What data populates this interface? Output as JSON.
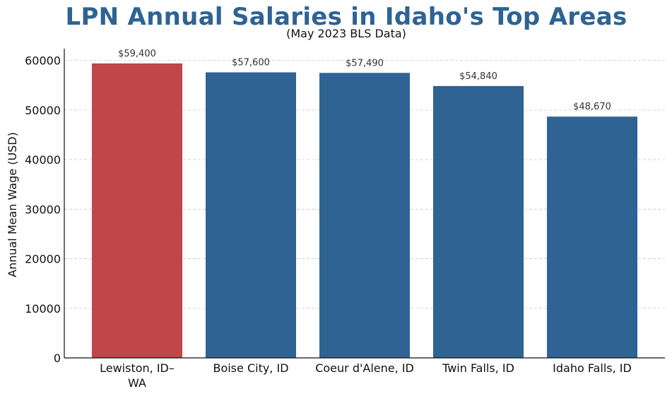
{
  "chart_data": {
    "type": "bar",
    "title": "LPN Annual Salaries in Idaho's Top Areas",
    "subtitle": "(May 2023 BLS Data)",
    "xlabel": "",
    "ylabel": "Annual Mean Wage (USD)",
    "categories": [
      "Lewiston, ID–WA",
      "Boise City, ID",
      "Coeur d'Alene, ID",
      "Twin Falls, ID",
      "Idaho Falls, ID"
    ],
    "category_lines": [
      [
        "Lewiston, ID–",
        "WA"
      ],
      [
        "Boise City, ID"
      ],
      [
        "Coeur d'Alene, ID"
      ],
      [
        "Twin Falls, ID"
      ],
      [
        "Idaho Falls, ID"
      ]
    ],
    "values": [
      59400,
      57600,
      57490,
      54840,
      48670
    ],
    "data_labels": [
      "$59,400",
      "$57,600",
      "$57,490",
      "$54,840",
      "$48,670"
    ],
    "yticks": [
      0,
      10000,
      20000,
      30000,
      40000,
      50000,
      60000
    ],
    "ylim": [
      0,
      62370
    ],
    "grid": "y-dashed",
    "legend": "none",
    "colors": {
      "highlight": "#c0464a",
      "default": "#2e6393"
    },
    "highlight_index": 0
  }
}
